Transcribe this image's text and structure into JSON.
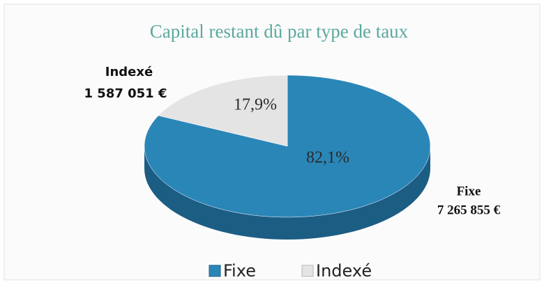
{
  "chart_data": {
    "type": "pie",
    "title": "Capital restant dû par type de taux",
    "categories": [
      "Fixe",
      "Indexé"
    ],
    "values": [
      82.1,
      17.9
    ],
    "value_labels": [
      "82,1%",
      "17,9%"
    ],
    "amounts": [
      7265855,
      1587051
    ],
    "amount_labels": [
      "7 265 855 €",
      "1 587 051 €"
    ],
    "colors": [
      "#2b86b8",
      "#e4e4e4"
    ],
    "side_colors": [
      "#1c5d84",
      "#b8b8b8"
    ],
    "legend": "bottom"
  }
}
